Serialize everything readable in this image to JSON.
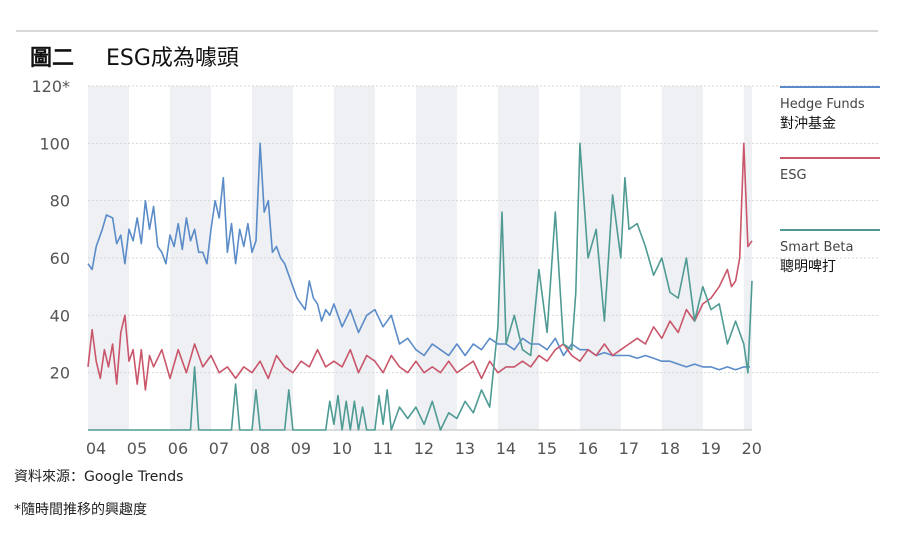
{
  "figure": {
    "label": "圖二",
    "subject": "ESG成為噱頭"
  },
  "source_text": "資料來源：Google Trends",
  "note_text": "*隨時間推移的興趣度",
  "legend": [
    {
      "label": "Hedge Funds",
      "sublabel": "對沖基金",
      "color": "#5b8cc9"
    },
    {
      "label": "ESG",
      "sublabel": "",
      "color": "#c9566a"
    },
    {
      "label": "Smart Beta",
      "sublabel": "聰明啤打",
      "color": "#4f9b94"
    }
  ],
  "chart_data": {
    "type": "line",
    "title": "ESG成為噱頭",
    "ylim": [
      0,
      120
    ],
    "yticks": [
      20,
      40,
      60,
      80,
      100
    ],
    "ytick_top_label": "120*",
    "xlim": [
      2004,
      2020.2
    ],
    "xtick_labels": [
      "04",
      "05",
      "06",
      "07",
      "08",
      "09",
      "10",
      "11",
      "12",
      "13",
      "14",
      "15",
      "16",
      "17",
      "18",
      "19",
      "20"
    ],
    "shaded_years": [
      2004,
      2006,
      2008,
      2010,
      2012,
      2014,
      2016,
      2018,
      2020
    ],
    "grid": true,
    "series": [
      {
        "name": "Hedge Funds",
        "color": "#5b8cc9",
        "x": [
          2004.0,
          2004.1,
          2004.2,
          2004.35,
          2004.45,
          2004.6,
          2004.7,
          2004.8,
          2004.9,
          2005.0,
          2005.1,
          2005.2,
          2005.3,
          2005.4,
          2005.5,
          2005.6,
          2005.7,
          2005.8,
          2005.9,
          2006.0,
          2006.1,
          2006.2,
          2006.3,
          2006.4,
          2006.5,
          2006.6,
          2006.7,
          2006.8,
          2006.9,
          2007.0,
          2007.1,
          2007.2,
          2007.3,
          2007.4,
          2007.5,
          2007.6,
          2007.7,
          2007.8,
          2007.9,
          2008.0,
          2008.1,
          2008.2,
          2008.3,
          2008.4,
          2008.5,
          2008.6,
          2008.7,
          2008.8,
          2008.9,
          2009.0,
          2009.1,
          2009.2,
          2009.3,
          2009.4,
          2009.5,
          2009.6,
          2009.7,
          2009.8,
          2009.9,
          2010.0,
          2010.2,
          2010.4,
          2010.6,
          2010.8,
          2011.0,
          2011.2,
          2011.4,
          2011.6,
          2011.8,
          2012.0,
          2012.2,
          2012.4,
          2012.6,
          2012.8,
          2013.0,
          2013.2,
          2013.4,
          2013.6,
          2013.8,
          2014.0,
          2014.2,
          2014.4,
          2014.6,
          2014.8,
          2015.0,
          2015.2,
          2015.4,
          2015.6,
          2015.8,
          2016.0,
          2016.2,
          2016.4,
          2016.6,
          2016.8,
          2017.0,
          2017.2,
          2017.4,
          2017.6,
          2017.8,
          2018.0,
          2018.2,
          2018.4,
          2018.6,
          2018.8,
          2019.0,
          2019.2,
          2019.4,
          2019.6,
          2019.8,
          2020.0,
          2020.15
        ],
        "values": [
          58,
          56,
          64,
          70,
          75,
          74,
          65,
          68,
          58,
          70,
          66,
          74,
          65,
          80,
          70,
          78,
          64,
          62,
          58,
          68,
          64,
          72,
          63,
          74,
          66,
          70,
          62,
          62,
          58,
          70,
          80,
          74,
          88,
          62,
          72,
          58,
          70,
          64,
          72,
          62,
          66,
          100,
          76,
          80,
          62,
          64,
          60,
          58,
          54,
          50,
          46,
          44,
          42,
          52,
          46,
          44,
          38,
          42,
          40,
          44,
          36,
          42,
          34,
          40,
          42,
          36,
          40,
          30,
          32,
          28,
          26,
          30,
          28,
          26,
          30,
          26,
          30,
          28,
          32,
          30,
          30,
          28,
          32,
          30,
          30,
          28,
          32,
          26,
          30,
          28,
          28,
          26,
          27,
          26,
          26,
          26,
          25,
          26,
          25,
          24,
          24,
          23,
          22,
          23,
          22,
          22,
          21,
          22,
          21,
          22,
          22
        ]
      },
      {
        "name": "ESG",
        "color": "#c9566a",
        "x": [
          2004.0,
          2004.1,
          2004.2,
          2004.3,
          2004.4,
          2004.5,
          2004.6,
          2004.7,
          2004.8,
          2004.9,
          2005.0,
          2005.1,
          2005.2,
          2005.3,
          2005.4,
          2005.5,
          2005.6,
          2005.8,
          2006.0,
          2006.2,
          2006.4,
          2006.6,
          2006.8,
          2007.0,
          2007.2,
          2007.4,
          2007.6,
          2007.8,
          2008.0,
          2008.2,
          2008.4,
          2008.6,
          2008.8,
          2009.0,
          2009.2,
          2009.4,
          2009.6,
          2009.8,
          2010.0,
          2010.2,
          2010.4,
          2010.6,
          2010.8,
          2011.0,
          2011.2,
          2011.4,
          2011.6,
          2011.8,
          2012.0,
          2012.2,
          2012.4,
          2012.6,
          2012.8,
          2013.0,
          2013.2,
          2013.4,
          2013.6,
          2013.8,
          2014.0,
          2014.2,
          2014.4,
          2014.6,
          2014.8,
          2015.0,
          2015.2,
          2015.4,
          2015.6,
          2015.8,
          2016.0,
          2016.2,
          2016.4,
          2016.6,
          2016.8,
          2017.0,
          2017.2,
          2017.4,
          2017.6,
          2017.8,
          2018.0,
          2018.2,
          2018.4,
          2018.6,
          2018.8,
          2019.0,
          2019.2,
          2019.4,
          2019.6,
          2019.7,
          2019.8,
          2019.9,
          2020.0,
          2020.1,
          2020.2
        ],
        "values": [
          22,
          35,
          24,
          18,
          28,
          22,
          30,
          16,
          34,
          40,
          24,
          28,
          16,
          28,
          14,
          26,
          22,
          28,
          18,
          28,
          20,
          30,
          22,
          26,
          20,
          22,
          18,
          22,
          20,
          24,
          18,
          26,
          22,
          20,
          24,
          22,
          28,
          22,
          24,
          22,
          28,
          20,
          26,
          24,
          20,
          26,
          22,
          20,
          24,
          20,
          22,
          20,
          24,
          20,
          22,
          24,
          18,
          24,
          20,
          22,
          22,
          24,
          22,
          26,
          24,
          28,
          30,
          26,
          24,
          28,
          26,
          30,
          26,
          28,
          30,
          32,
          30,
          36,
          32,
          38,
          34,
          42,
          38,
          44,
          46,
          50,
          56,
          50,
          52,
          60,
          100,
          64,
          66
        ]
      },
      {
        "name": "Smart Beta",
        "color": "#4f9b94",
        "x": [
          2004.0,
          2006.5,
          2006.6,
          2006.7,
          2006.8,
          2007.0,
          2007.5,
          2007.6,
          2007.7,
          2008.0,
          2008.1,
          2008.2,
          2008.3,
          2008.8,
          2008.9,
          2009.0,
          2009.8,
          2009.9,
          2010.0,
          2010.1,
          2010.2,
          2010.3,
          2010.4,
          2010.5,
          2010.6,
          2010.7,
          2010.8,
          2011.0,
          2011.1,
          2011.2,
          2011.3,
          2011.4,
          2011.6,
          2011.8,
          2012.0,
          2012.2,
          2012.4,
          2012.6,
          2012.8,
          2013.0,
          2013.2,
          2013.4,
          2013.6,
          2013.8,
          2014.0,
          2014.1,
          2014.2,
          2014.4,
          2014.6,
          2014.8,
          2015.0,
          2015.2,
          2015.4,
          2015.6,
          2015.8,
          2015.9,
          2016.0,
          2016.2,
          2016.4,
          2016.6,
          2016.8,
          2017.0,
          2017.1,
          2017.2,
          2017.4,
          2017.6,
          2017.8,
          2018.0,
          2018.2,
          2018.4,
          2018.6,
          2018.8,
          2019.0,
          2019.2,
          2019.4,
          2019.6,
          2019.8,
          2020.0,
          2020.1,
          2020.2
        ],
        "values": [
          0,
          0,
          22,
          0,
          0,
          0,
          0,
          16,
          0,
          0,
          14,
          0,
          0,
          0,
          14,
          0,
          0,
          10,
          2,
          12,
          0,
          10,
          0,
          10,
          0,
          8,
          0,
          0,
          12,
          2,
          14,
          0,
          8,
          4,
          8,
          2,
          10,
          0,
          6,
          4,
          10,
          6,
          14,
          8,
          36,
          76,
          30,
          40,
          28,
          26,
          56,
          34,
          76,
          30,
          28,
          48,
          100,
          60,
          70,
          38,
          82,
          60,
          88,
          70,
          72,
          64,
          54,
          60,
          48,
          46,
          60,
          38,
          50,
          42,
          44,
          30,
          38,
          30,
          20,
          52
        ]
      }
    ]
  }
}
